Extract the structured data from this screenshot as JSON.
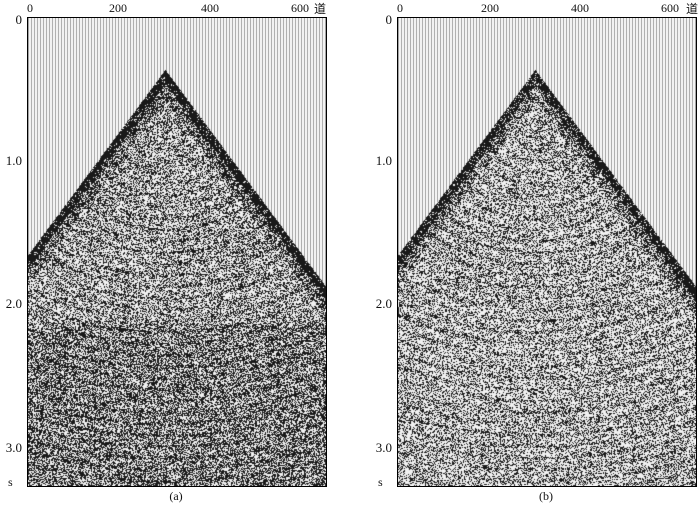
{
  "figure": {
    "x_ticks": [
      "0",
      "200",
      "400",
      "600"
    ],
    "x_unit": "道",
    "y_ticks": [
      "0",
      "1.0",
      "2.0",
      "3.0"
    ],
    "y_unit": "s",
    "panels": [
      {
        "caption": "(a)"
      },
      {
        "caption": "(b)"
      }
    ]
  }
}
